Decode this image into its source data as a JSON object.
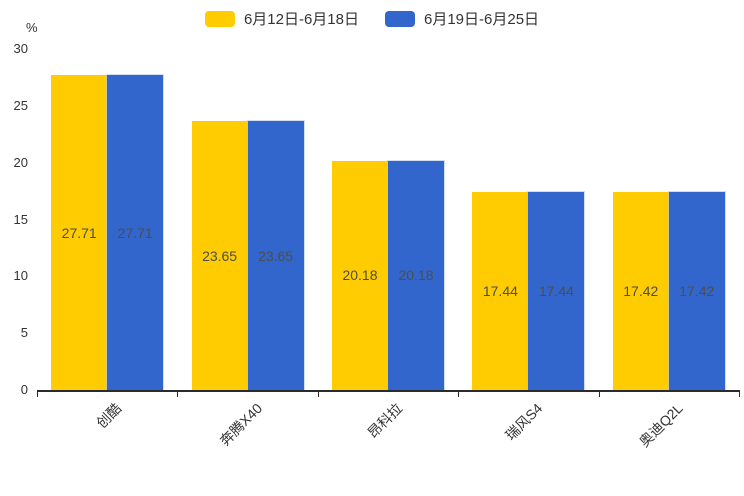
{
  "chart_data": {
    "type": "bar",
    "title": "",
    "categories": [
      "创酷",
      "奔腾X40",
      "昂科拉",
      "瑞风S4",
      "奥迪Q2L"
    ],
    "series": [
      {
        "name": "6月12日-6月18日",
        "color": "#FECC00",
        "values": [
          27.71,
          23.65,
          20.18,
          17.44,
          17.42
        ]
      },
      {
        "name": "6月19日-6月25日",
        "color": "#3366CC",
        "values": [
          27.71,
          23.65,
          20.18,
          17.44,
          17.42
        ]
      }
    ],
    "xlabel": "",
    "ylabel": "%",
    "ylim": [
      0,
      30
    ],
    "yticks": [
      0,
      5,
      10,
      15,
      20,
      25,
      30
    ],
    "legend_position": "top",
    "grid": false,
    "value_labels": "centered two-decimal labels inside bars",
    "x_label_rotation_deg": -45,
    "colors": {
      "axis": "#2b2b2b",
      "tick_label": "#333333",
      "value_label": "#4d4d4d",
      "background": "#ffffff"
    }
  }
}
